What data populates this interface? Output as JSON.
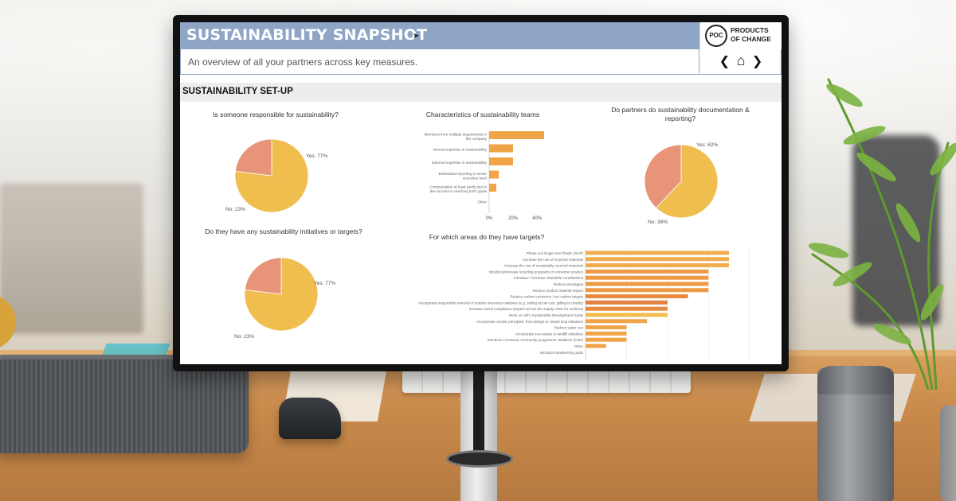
{
  "dashboard": {
    "title": "SUSTAINABILITY SNAPSHOT",
    "subtitle": "An overview of all your partners across key measures.",
    "section": "SUSTAINABILITY SET-UP",
    "logo": {
      "mark": "POC",
      "text_line1": "PRODUCTS",
      "text_line2": "OF CHANGE"
    },
    "nav": {
      "prev": "❮",
      "home": "⌂",
      "next": "❯"
    }
  },
  "colors": {
    "yes": "#f0bd4f",
    "no": "#e89478",
    "bar": "#f0a447",
    "header": "#8ea5c6"
  },
  "chart_data": [
    {
      "type": "pie",
      "title": "Is someone responsible for sustainability?",
      "labels": [
        "Yes: 77%",
        "No: 23%"
      ],
      "values": [
        77,
        23
      ]
    },
    {
      "type": "bar",
      "title": "Characteristics of sustainability teams",
      "orientation": "horizontal",
      "categories": [
        "Members from multiple departments in the company",
        "Internal expertise in sustainability",
        "External expertise in sustainability",
        "Embedded reporting to senior executive level",
        "Compensation at least partly tied to the success in reaching ESG goals",
        "Other"
      ],
      "values": [
        46,
        20,
        20,
        8,
        6,
        0
      ],
      "ticks": [
        "0%",
        "20%",
        "40%"
      ],
      "xlim": [
        0,
        50
      ]
    },
    {
      "type": "pie",
      "title": "Do partners do sustainability documentation & reporting?",
      "labels": [
        "Yes: 62%",
        "No: 38%"
      ],
      "values": [
        62,
        38
      ]
    },
    {
      "type": "pie",
      "title": "Do they have any sustainability initiatives or targets?",
      "labels": [
        "Yes: 77%",
        "No: 23%"
      ],
      "values": [
        77,
        23
      ]
    },
    {
      "type": "bar",
      "title": "For which areas do they have targets?",
      "orientation": "horizontal",
      "categories": [
        "Phase out Single Use Plastic (SUP)",
        "Increase the use of recycled materials",
        "Increase the use of sustainably sourced materials",
        "Introduce/increase recycling programs of consumer product",
        "Introduce / increase charitable contributions",
        "Reduce packaging",
        "Reduce product material impact",
        "Reduce carbon emissions / set carbon targets",
        "Incorporate responsible removal of surplus inventory initiatives (e.g. selling at low cost, gifting to charity)",
        "Increase social compliance (impact across the supply chain for workers)",
        "Work on UN's Sustainable Development Goals",
        "Incorporate circular principles, from design to closed loop initiatives",
        "Reduce water use",
        "Incorporate zero-waste to landfill initiatives",
        "Introduce / increase community programme initiatives (CSR)",
        "Other",
        "Introduce biodiversity goals"
      ],
      "values": [
        70,
        70,
        70,
        60,
        60,
        60,
        60,
        50,
        40,
        40,
        40,
        30,
        20,
        20,
        20,
        10,
        0
      ],
      "xlim": [
        0,
        80
      ]
    }
  ]
}
